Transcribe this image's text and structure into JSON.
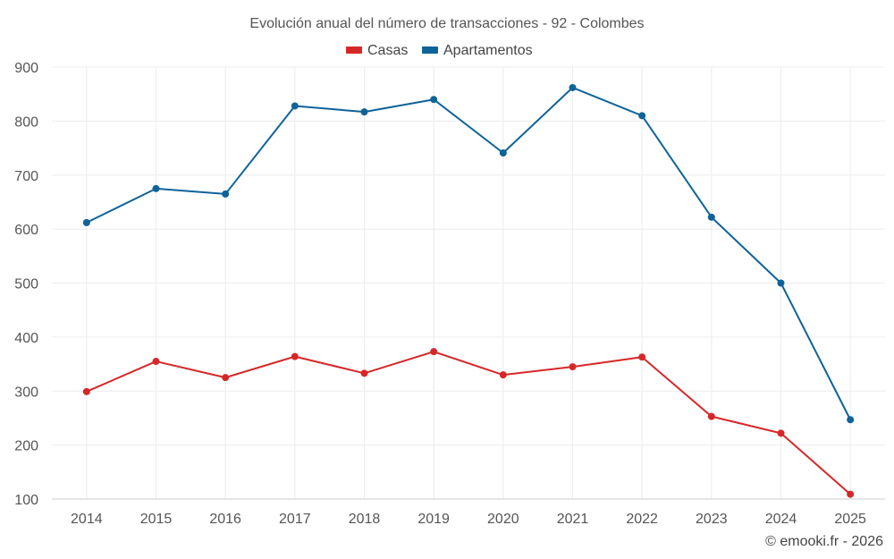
{
  "chart_data": {
    "type": "line",
    "title": "Evolución anual del número de transacciones - 92 - Colombes",
    "categories": [
      "2014",
      "2015",
      "2016",
      "2017",
      "2018",
      "2019",
      "2020",
      "2021",
      "2022",
      "2023",
      "2024",
      "2025"
    ],
    "ylim": [
      100,
      900
    ],
    "yticks": [
      100,
      200,
      300,
      400,
      500,
      600,
      700,
      800,
      900
    ],
    "grid": true,
    "legend_position": "top-center",
    "series": [
      {
        "name": "Casas",
        "color": "#d62728",
        "values": [
          299,
          355,
          325,
          364,
          333,
          373,
          330,
          345,
          363,
          253,
          222,
          109
        ]
      },
      {
        "name": "Apartamentos",
        "color": "#0e6399",
        "values": [
          612,
          675,
          665,
          828,
          817,
          840,
          741,
          862,
          810,
          622,
          500,
          247
        ]
      }
    ],
    "credit": "© emooki.fr - 2026"
  }
}
